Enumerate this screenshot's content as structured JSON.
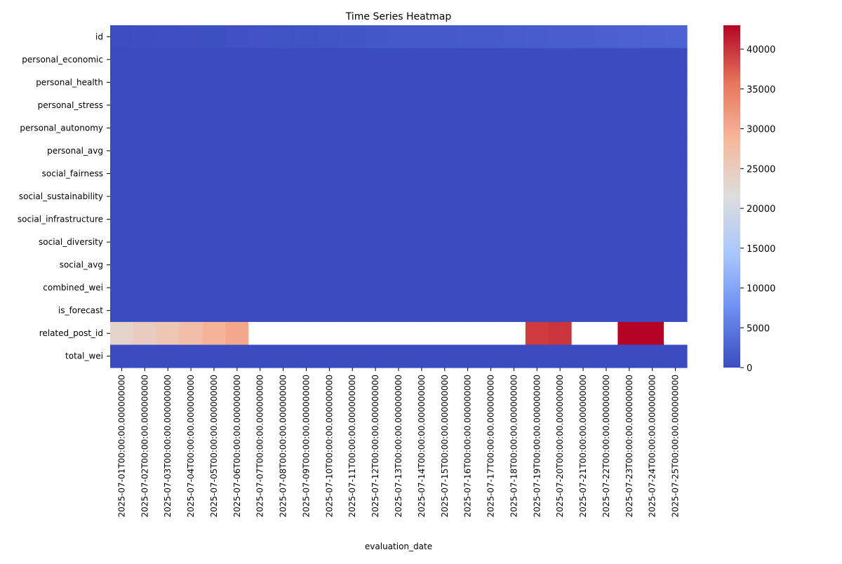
{
  "chart_data": {
    "type": "heatmap",
    "title": "Time Series Heatmap",
    "xlabel": "evaluation_date",
    "ylabel": "",
    "colormap": "coolwarm",
    "colormap_stops": [
      "#3b4cc0",
      "#6b8df0",
      "#aac7fd",
      "#dddddd",
      "#f7b89c",
      "#e7745b",
      "#b40426"
    ],
    "missing_color": "#ffffff",
    "vmin": 0,
    "vmax": 43000,
    "colorbar_ticks": [
      0,
      5000,
      10000,
      15000,
      20000,
      25000,
      30000,
      35000,
      40000
    ],
    "rows": [
      "id",
      "personal_economic",
      "personal_health",
      "personal_stress",
      "personal_autonomy",
      "personal_avg",
      "social_fairness",
      "social_sustainability",
      "social_infrastructure",
      "social_diversity",
      "social_avg",
      "combined_wei",
      "is_forecast",
      "related_post_id",
      "total_wei"
    ],
    "x": [
      "2025-07-01T00:00:00.000000000",
      "2025-07-02T00:00:00.000000000",
      "2025-07-03T00:00:00.000000000",
      "2025-07-04T00:00:00.000000000",
      "2025-07-05T00:00:00.000000000",
      "2025-07-06T00:00:00.000000000",
      "2025-07-07T00:00:00.000000000",
      "2025-07-08T00:00:00.000000000",
      "2025-07-09T00:00:00.000000000",
      "2025-07-10T00:00:00.000000000",
      "2025-07-11T00:00:00.000000000",
      "2025-07-12T00:00:00.000000000",
      "2025-07-13T00:00:00.000000000",
      "2025-07-14T00:00:00.000000000",
      "2025-07-15T00:00:00.000000000",
      "2025-07-16T00:00:00.000000000",
      "2025-07-17T00:00:00.000000000",
      "2025-07-18T00:00:00.000000000",
      "2025-07-19T00:00:00.000000000",
      "2025-07-20T00:00:00.000000000",
      "2025-07-21T00:00:00.000000000",
      "2025-07-22T00:00:00.000000000",
      "2025-07-23T00:00:00.000000000",
      "2025-07-24T00:00:00.000000000",
      "2025-07-25T00:00:00.000000000"
    ],
    "values": [
      [
        100,
        200,
        300,
        400,
        500,
        600,
        700,
        800,
        900,
        1000,
        1100,
        1200,
        1300,
        1400,
        1500,
        1600,
        1700,
        1800,
        1900,
        2000,
        2100,
        2200,
        2300,
        2400,
        2500
      ],
      [
        5,
        5,
        5,
        5,
        5,
        5,
        5,
        5,
        5,
        5,
        5,
        5,
        5,
        5,
        5,
        5,
        5,
        5,
        5,
        5,
        5,
        5,
        5,
        5,
        5
      ],
      [
        5,
        5,
        5,
        5,
        5,
        5,
        5,
        5,
        5,
        5,
        5,
        5,
        5,
        5,
        5,
        5,
        5,
        5,
        5,
        5,
        5,
        5,
        5,
        5,
        5
      ],
      [
        5,
        5,
        5,
        5,
        5,
        5,
        5,
        5,
        5,
        5,
        5,
        5,
        5,
        5,
        5,
        5,
        5,
        5,
        5,
        5,
        5,
        5,
        5,
        5,
        5
      ],
      [
        5,
        5,
        5,
        5,
        5,
        5,
        5,
        5,
        5,
        5,
        5,
        5,
        5,
        5,
        5,
        5,
        5,
        5,
        5,
        5,
        5,
        5,
        5,
        5,
        5
      ],
      [
        5,
        5,
        5,
        5,
        5,
        5,
        5,
        5,
        5,
        5,
        5,
        5,
        5,
        5,
        5,
        5,
        5,
        5,
        5,
        5,
        5,
        5,
        5,
        5,
        5
      ],
      [
        5,
        5,
        5,
        5,
        5,
        5,
        5,
        5,
        5,
        5,
        5,
        5,
        5,
        5,
        5,
        5,
        5,
        5,
        5,
        5,
        5,
        5,
        5,
        5,
        5
      ],
      [
        5,
        5,
        5,
        5,
        5,
        5,
        5,
        5,
        5,
        5,
        5,
        5,
        5,
        5,
        5,
        5,
        5,
        5,
        5,
        5,
        5,
        5,
        5,
        5,
        5
      ],
      [
        5,
        5,
        5,
        5,
        5,
        5,
        5,
        5,
        5,
        5,
        5,
        5,
        5,
        5,
        5,
        5,
        5,
        5,
        5,
        5,
        5,
        5,
        5,
        5,
        5
      ],
      [
        5,
        5,
        5,
        5,
        5,
        5,
        5,
        5,
        5,
        5,
        5,
        5,
        5,
        5,
        5,
        5,
        5,
        5,
        5,
        5,
        5,
        5,
        5,
        5,
        5
      ],
      [
        5,
        5,
        5,
        5,
        5,
        5,
        5,
        5,
        5,
        5,
        5,
        5,
        5,
        5,
        5,
        5,
        5,
        5,
        5,
        5,
        5,
        5,
        5,
        5,
        5
      ],
      [
        5,
        5,
        5,
        5,
        5,
        5,
        5,
        5,
        5,
        5,
        5,
        5,
        5,
        5,
        5,
        5,
        5,
        5,
        5,
        5,
        5,
        5,
        5,
        5,
        5
      ],
      [
        0,
        0,
        0,
        0,
        0,
        0,
        0,
        0,
        0,
        0,
        0,
        0,
        0,
        0,
        0,
        0,
        0,
        0,
        0,
        0,
        0,
        0,
        0,
        0,
        0
      ],
      [
        23500,
        24800,
        26000,
        27500,
        29000,
        30500,
        null,
        null,
        null,
        null,
        null,
        null,
        null,
        null,
        null,
        null,
        null,
        null,
        39500,
        39800,
        null,
        null,
        43000,
        43000,
        null
      ],
      [
        10,
        10,
        10,
        10,
        10,
        10,
        10,
        10,
        10,
        10,
        10,
        10,
        10,
        10,
        10,
        10,
        10,
        10,
        10,
        10,
        10,
        10,
        10,
        10,
        10
      ]
    ]
  }
}
